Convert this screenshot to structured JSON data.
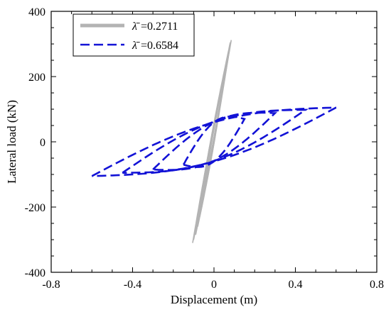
{
  "chart_data": {
    "type": "line",
    "xlabel": "Displacement (m)",
    "ylabel": "Lateral load (kN)",
    "xlim": [
      -0.8,
      0.8
    ],
    "ylim": [
      -400,
      400
    ],
    "xticks": [
      "-0.8",
      "-0.4",
      "0",
      "0.4",
      "0.8"
    ],
    "yticks": [
      "400",
      "200",
      "0",
      "-200",
      "-400"
    ],
    "grid": false,
    "legend_position": "top-left",
    "series": [
      {
        "name": "=0.2711",
        "symbol": "λ̄",
        "color": "#b3b3b3",
        "style": "solid",
        "kind": "hysteresis",
        "cycles": [
          {
            "dmin": -0.07,
            "dmax": 0.06,
            "fmin": -230,
            "fmax": 230
          },
          {
            "dmin": -0.08,
            "dmax": 0.07,
            "fmin": -260,
            "fmax": 260
          },
          {
            "dmin": -0.09,
            "dmax": 0.075,
            "fmin": -285,
            "fmax": 285
          },
          {
            "dmin": -0.1,
            "dmax": 0.08,
            "fmin": -300,
            "fmax": 305
          },
          {
            "dmin": -0.105,
            "dmax": 0.085,
            "fmin": -310,
            "fmax": 312
          }
        ]
      },
      {
        "name": "=0.6584",
        "symbol": "λ̄",
        "color": "#1212d6",
        "style": "dashed",
        "kind": "hysteresis",
        "cycles": [
          {
            "dmin": -0.15,
            "dmax": 0.15,
            "fmin": -70,
            "fmax": 70
          },
          {
            "dmin": -0.3,
            "dmax": 0.3,
            "fmin": -85,
            "fmax": 88
          },
          {
            "dmin": -0.45,
            "dmax": 0.45,
            "fmin": -95,
            "fmax": 98
          },
          {
            "dmin": -0.6,
            "dmax": 0.6,
            "fmin": -105,
            "fmax": 105
          }
        ]
      }
    ]
  }
}
